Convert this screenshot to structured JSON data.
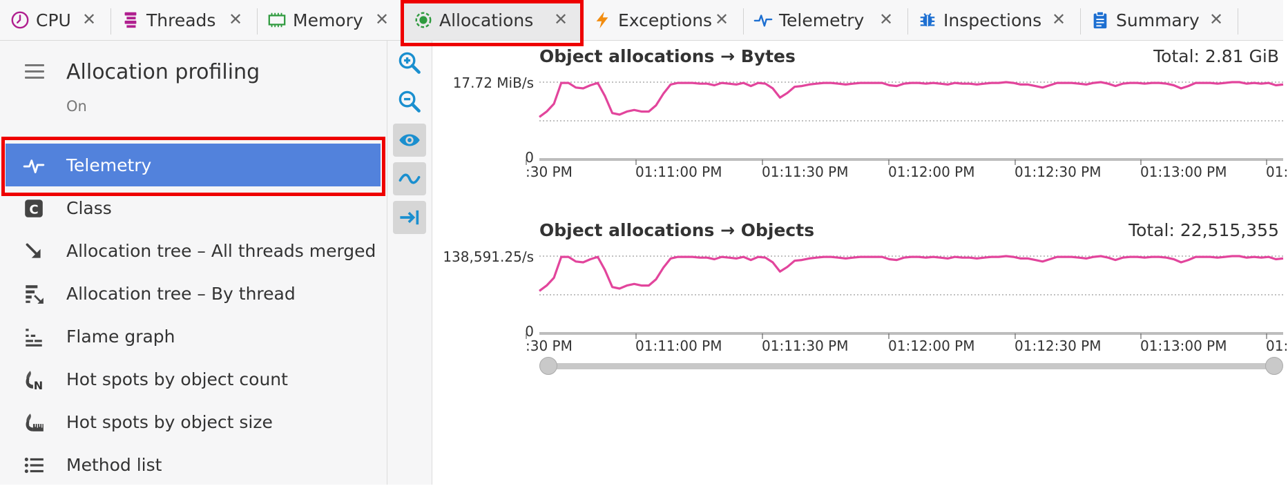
{
  "tabs": [
    {
      "label": "CPU",
      "icon": "clock-icon",
      "color": "#b01f8f"
    },
    {
      "label": "Threads",
      "icon": "threads-icon",
      "color": "#b01f8f"
    },
    {
      "label": "Memory",
      "icon": "memory-chip-icon",
      "color": "#2e9a3e"
    },
    {
      "label": "Allocations",
      "icon": "allocations-icon",
      "color": "#2e9a3e",
      "active": true
    },
    {
      "label": "Exceptions",
      "icon": "lightning-icon",
      "color": "#f28c0f"
    },
    {
      "label": "Telemetry",
      "icon": "pulse-icon",
      "color": "#1d6fd1"
    },
    {
      "label": "Inspections",
      "icon": "bug-icon",
      "color": "#1d6fd1"
    },
    {
      "label": "Summary",
      "icon": "clipboard-icon",
      "color": "#1d6fd1"
    }
  ],
  "tab_close_glyph": "✕",
  "panel": {
    "title": "Allocation profiling",
    "status": "On"
  },
  "nav_items": [
    {
      "label": "Telemetry",
      "icon": "pulse-icon",
      "selected": true
    },
    {
      "label": "Class",
      "icon": "class-c-icon"
    },
    {
      "label": "Allocation tree – All threads merged",
      "icon": "arrow-down-right-icon"
    },
    {
      "label": "Allocation tree – By thread",
      "icon": "thread-tree-icon"
    },
    {
      "label": "Flame graph",
      "icon": "flame-graph-icon"
    },
    {
      "label": "Hot spots by object count",
      "icon": "hotspot-count-icon"
    },
    {
      "label": "Hot spots by object size",
      "icon": "hotspot-size-icon"
    },
    {
      "label": "Method list",
      "icon": "list-icon"
    }
  ],
  "toolbar": [
    {
      "icon": "zoom-in-icon"
    },
    {
      "icon": "zoom-out-icon"
    },
    {
      "icon": "eye-icon"
    },
    {
      "icon": "wave-icon"
    },
    {
      "icon": "scroll-to-end-icon"
    }
  ],
  "charts": [
    {
      "title": "Object allocations → Bytes",
      "total": "Total: 2.81 GiB",
      "y_max_label": "17.72 MiB/s",
      "y_zero_label": "0",
      "x_ticks": [
        ":30 PM",
        "01:11:00 PM",
        "01:11:30 PM",
        "01:12:00 PM",
        "01:12:30 PM",
        "01:13:00 PM",
        "01:"
      ]
    },
    {
      "title": "Object allocations → Objects",
      "total": "Total: 22,515,355",
      "y_max_label": "138,591.25/s",
      "y_zero_label": "0",
      "x_ticks": [
        ":30 PM",
        "01:11:00 PM",
        "01:11:30 PM",
        "01:12:00 PM",
        "01:12:30 PM",
        "01:13:00 PM",
        "01:"
      ]
    }
  ],
  "chart_data": {
    "type": "line",
    "series_color": "#e2459c",
    "series": [
      {
        "values": [
          0.55,
          0.62,
          0.72,
          0.99,
          0.99,
          0.93,
          0.92,
          0.96,
          0.99,
          0.82,
          0.6,
          0.58,
          0.62,
          0.64,
          0.62,
          0.62,
          0.7,
          0.85,
          0.97,
          0.99,
          0.99,
          0.99,
          0.98,
          0.98,
          0.96,
          0.99,
          0.98,
          0.97,
          0.99,
          0.95,
          0.99,
          0.98,
          0.92,
          0.8,
          0.86,
          0.94,
          0.95,
          0.97,
          0.98,
          0.99,
          0.99,
          0.98,
          0.97,
          0.98,
          0.99,
          0.99,
          0.99,
          0.99,
          0.96,
          0.95,
          0.98,
          0.99,
          0.99,
          0.98,
          0.99,
          0.98,
          0.97,
          0.99,
          0.98,
          0.98,
          0.97,
          0.98,
          0.99,
          0.99,
          1.0,
          0.99,
          0.97,
          0.97,
          0.95,
          0.93,
          0.96,
          0.99,
          0.99,
          0.99,
          0.98,
          0.97,
          0.99,
          1.0,
          0.98,
          0.95,
          0.98,
          0.99,
          0.99,
          0.98,
          0.99,
          0.99,
          0.98,
          0.96,
          0.92,
          0.95,
          0.99,
          0.99,
          0.99,
          0.98,
          0.99,
          1.0,
          1.0,
          0.98,
          0.99,
          0.98,
          0.99,
          0.96,
          0.97
        ]
      }
    ]
  }
}
